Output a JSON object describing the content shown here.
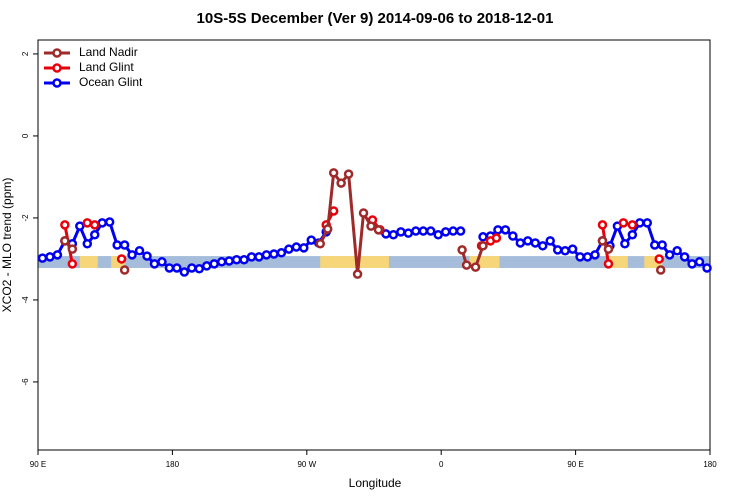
{
  "chart_data": {
    "type": "line",
    "title": "10S-5S December (Ver 9)   2014-09-06 to 2018-12-01",
    "x_label": "Longitude",
    "y_label": "XCO2 - MLO trend (ppm)",
    "xlim": [
      90,
      540
    ],
    "ylim": [
      -7.66,
      2.34
    ],
    "xticks": [
      {
        "value": 90,
        "label": "90 E"
      },
      {
        "value": 180,
        "label": "180"
      },
      {
        "value": 270,
        "label": "90 W"
      },
      {
        "value": 360,
        "label": "0"
      },
      {
        "value": 450,
        "label": "90 E"
      },
      {
        "value": 540,
        "label": "180"
      }
    ],
    "yticks": [
      2,
      0,
      -2,
      -4,
      -6
    ],
    "legend": "top-left",
    "band": {
      "y": [
        -3.22,
        -2.93
      ],
      "color": "#a5bddb",
      "highlight_color": "#f7d67a",
      "highlight_x": [
        [
          118,
          130
        ],
        [
          139,
          148
        ],
        [
          279,
          325
        ],
        [
          379,
          399
        ],
        [
          471,
          485
        ],
        [
          496,
          508
        ]
      ]
    },
    "series": [
      {
        "name": "Ocean Glint",
        "color": "#0000ee",
        "x": [
          93,
          98,
          103,
          108,
          113,
          118,
          123,
          128,
          133,
          138,
          143,
          148,
          153,
          158,
          163,
          168,
          173,
          178,
          183,
          188,
          193,
          198,
          203,
          208,
          213,
          218,
          223,
          228,
          233,
          238,
          243,
          248,
          253,
          258,
          263,
          268,
          273,
          278,
          283,
          303,
          323,
          328,
          333,
          338,
          343,
          348,
          353,
          358,
          363,
          368,
          373,
          380,
          388,
          393,
          398,
          403,
          408,
          413,
          418,
          423,
          428,
          433,
          438,
          443,
          448,
          453,
          458,
          463,
          468,
          473,
          478,
          483,
          488,
          493,
          498,
          503,
          508,
          513,
          518,
          523,
          528,
          533,
          538
        ],
        "values": [
          -2.98,
          -2.95,
          -2.9,
          -2.56,
          -2.63,
          -2.2,
          -2.63,
          -2.41,
          -2.12,
          -2.1,
          -2.66,
          -2.66,
          -2.9,
          -2.8,
          -2.93,
          -3.12,
          -3.07,
          -3.22,
          -3.22,
          -3.32,
          -3.22,
          -3.24,
          -3.17,
          -3.12,
          -3.07,
          -3.05,
          -3.02,
          -3.02,
          -2.95,
          -2.95,
          -2.9,
          -2.88,
          -2.85,
          -2.76,
          -2.71,
          -2.73,
          -2.54,
          -2.61,
          -2.34,
          null,
          -2.39,
          -2.41,
          -2.34,
          -2.37,
          -2.32,
          -2.32,
          -2.32,
          -2.41,
          -2.34,
          -2.32,
          -2.32,
          null,
          -2.46,
          -2.44,
          -2.29,
          -2.29,
          -2.44,
          -2.61,
          -2.56,
          -2.61,
          -2.68,
          -2.56,
          -2.78,
          -2.8,
          -2.76,
          -2.95,
          -2.95,
          -2.9,
          -2.56,
          -2.68,
          -2.2,
          -2.63,
          -2.41,
          -2.12,
          -2.12,
          -2.66,
          -2.66,
          -2.9,
          -2.8,
          -2.95,
          -3.12,
          -3.07,
          -3.22
        ]
      },
      {
        "name": "Land Glint",
        "color": "#e8000b",
        "x": [
          108,
          113,
          118,
          123,
          128,
          135,
          146,
          200,
          283,
          288,
          300,
          314,
          319,
          350,
          387,
          393,
          397,
          430,
          468,
          472,
          477,
          482,
          488,
          495,
          506
        ],
        "values": [
          -2.17,
          -3.12,
          null,
          -2.12,
          -2.17,
          null,
          -3.0,
          null,
          -2.17,
          -1.83,
          null,
          -2.05,
          -2.29,
          null,
          -2.68,
          -2.56,
          -2.49,
          null,
          -2.17,
          -3.12,
          null,
          -2.12,
          -2.17,
          null,
          -3.0
        ]
      },
      {
        "name": "Land Nadir",
        "color": "#9e2a2a",
        "x": [
          108,
          113,
          118,
          148,
          200,
          279,
          284,
          288,
          293,
          298,
          304,
          308,
          313,
          318,
          350,
          374,
          377,
          383,
          388,
          430,
          468,
          472,
          490,
          507
        ],
        "values": [
          -2.56,
          -2.76,
          null,
          -3.27,
          null,
          -2.63,
          -2.27,
          -0.9,
          -1.15,
          -0.93,
          -3.37,
          -1.88,
          -2.2,
          -2.29,
          null,
          -2.78,
          -3.15,
          -3.2,
          -2.68,
          null,
          -2.56,
          -2.76,
          null,
          -3.27
        ]
      }
    ]
  }
}
